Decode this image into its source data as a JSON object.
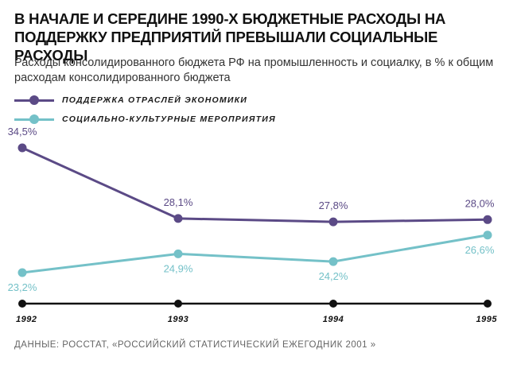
{
  "title": "В НАЧАЛЕ И СЕРЕДИНЕ 1990-Х БЮДЖЕТНЫЕ РАСХОДЫ НА ПОДДЕРЖКУ ПРЕДПРИЯТИЙ ПРЕВЫШАЛИ СОЦИАЛЬНЫЕ РАСХОДЫ",
  "subtitle": "Расходы консолидированного бюджета РФ на промышленность и социалку, в % к общим расходам консолидированного бюджета",
  "source": "ДАННЫЕ: РОССТАТ, «РОССИЙСКИЙ СТАТИСТИЧЕСКИЙ ЕЖЕГОДНИК 2001 »",
  "colors": {
    "purple": "#5b4a86",
    "teal": "#74c1c8",
    "axis": "#111111"
  },
  "chart_data": {
    "type": "line",
    "categories": [
      "1992",
      "1993",
      "1994",
      "1995"
    ],
    "ylim": [
      20,
      36
    ],
    "legend_position": "top-left",
    "grid": false,
    "series": [
      {
        "name": "ПОДДЕРЖКА ОТРАСЛЕЙ ЭКОНОМИКИ",
        "color": "#5b4a86",
        "values": [
          34.5,
          28.1,
          27.8,
          28.0
        ],
        "labels": [
          "34,5%",
          "28,1%",
          "27,8%",
          "28,0%"
        ]
      },
      {
        "name": "СОЦИАЛЬНО-КУЛЬТУРНЫЕ МЕРОПРИЯТИЯ",
        "color": "#74c1c8",
        "values": [
          23.2,
          24.9,
          24.2,
          26.6
        ],
        "labels": [
          "23,2%",
          "24,9%",
          "24,2%",
          "26,6%"
        ]
      }
    ]
  }
}
